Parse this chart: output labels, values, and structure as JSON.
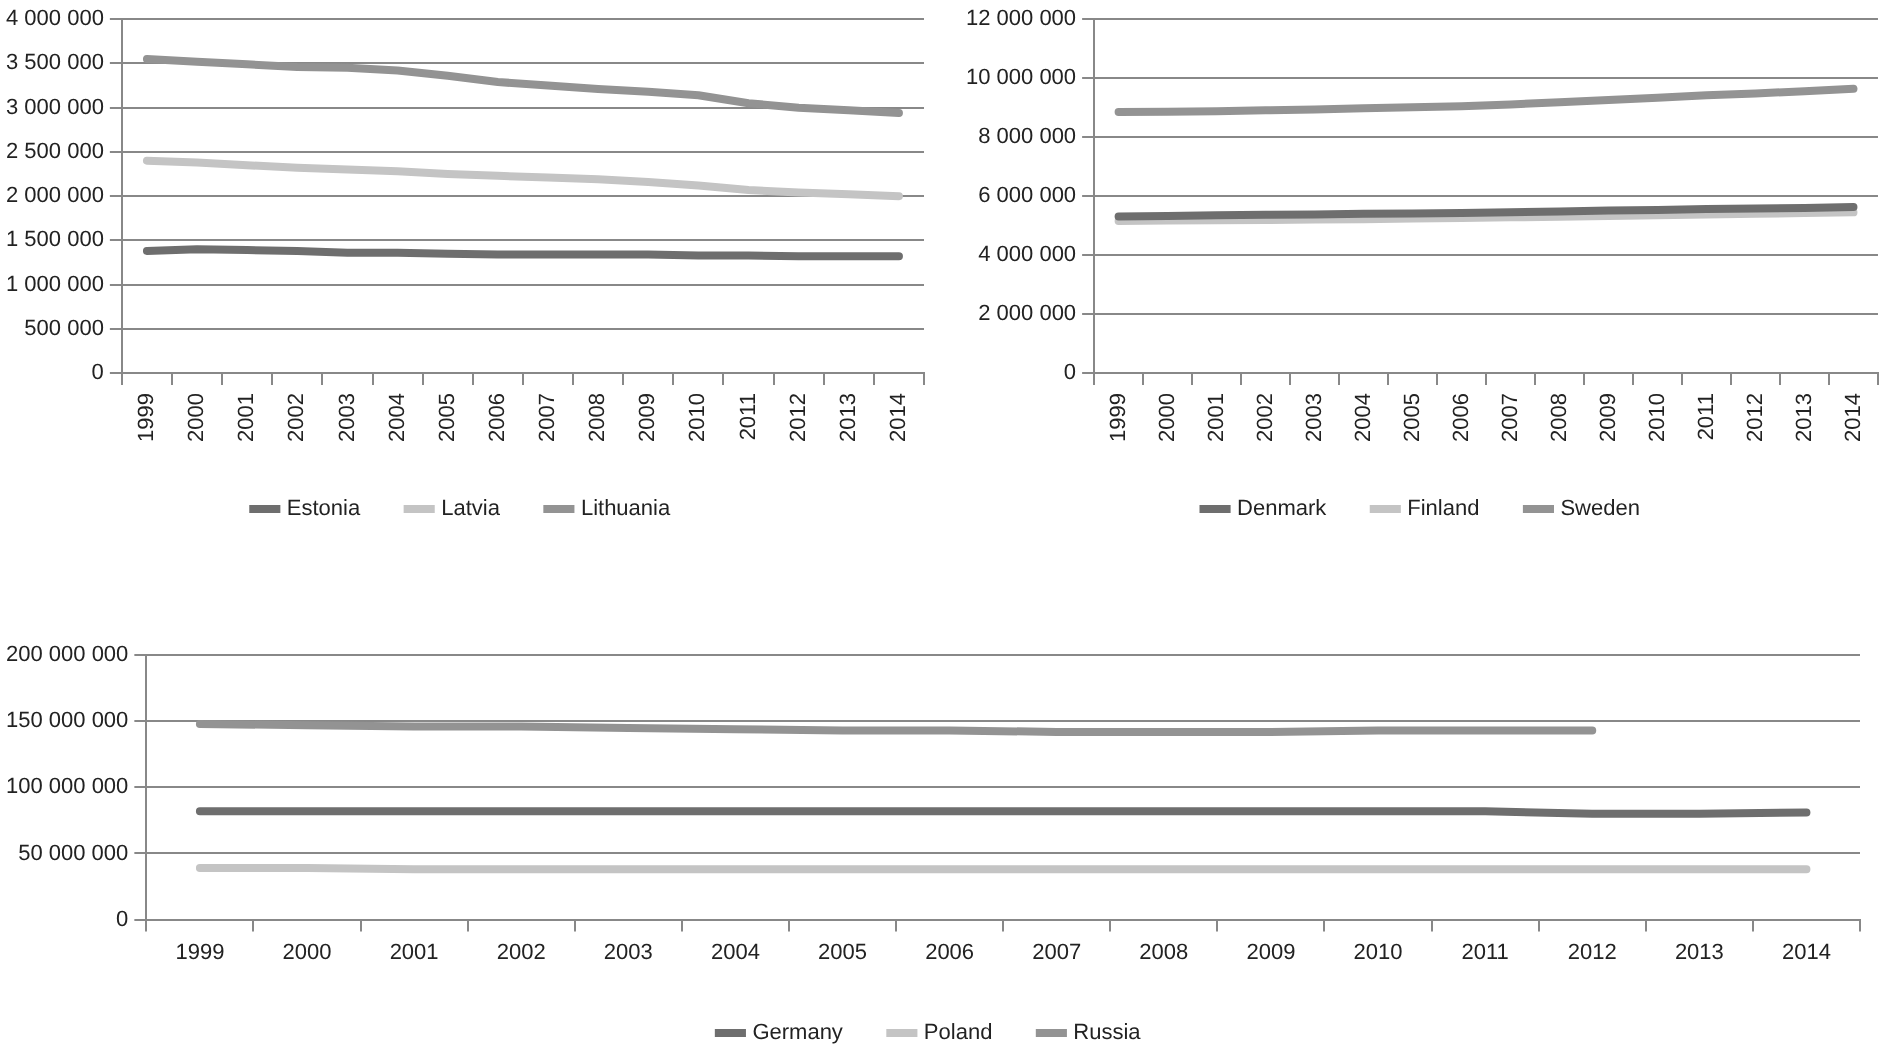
{
  "chart_data": [
    {
      "type": "line",
      "categories": [
        "1999",
        "2000",
        "2001",
        "2002",
        "2003",
        "2004",
        "2005",
        "2006",
        "2007",
        "2008",
        "2009",
        "2010",
        "2011",
        "2012",
        "2013",
        "2014"
      ],
      "series": [
        {
          "name": "Estonia",
          "color": "#6e6e6e",
          "values": [
            1380000,
            1400000,
            1390000,
            1380000,
            1360000,
            1360000,
            1350000,
            1340000,
            1340000,
            1340000,
            1340000,
            1330000,
            1330000,
            1320000,
            1320000,
            1320000
          ]
        },
        {
          "name": "Latvia",
          "color": "#c4c4c4",
          "values": [
            2400000,
            2380000,
            2350000,
            2320000,
            2300000,
            2280000,
            2250000,
            2230000,
            2210000,
            2190000,
            2160000,
            2120000,
            2070000,
            2040000,
            2020000,
            2000000
          ]
        },
        {
          "name": "Lithuania",
          "color": "#939393",
          "values": [
            3550000,
            3520000,
            3490000,
            3460000,
            3450000,
            3420000,
            3360000,
            3290000,
            3250000,
            3210000,
            3180000,
            3140000,
            3050000,
            3000000,
            2970000,
            2940000
          ]
        }
      ],
      "ylim": [
        0,
        4000000
      ],
      "yticks": [
        {
          "value": 0,
          "label": "0"
        },
        {
          "value": 500000,
          "label": "500 000"
        },
        {
          "value": 1000000,
          "label": "1 000 000"
        },
        {
          "value": 1500000,
          "label": "1 500 000"
        },
        {
          "value": 2000000,
          "label": "2 000 000"
        },
        {
          "value": 2500000,
          "label": "2 500 000"
        },
        {
          "value": 3000000,
          "label": "3 000 000"
        },
        {
          "value": 3500000,
          "label": "3 500 000"
        },
        {
          "value": 4000000,
          "label": "4 000 000"
        }
      ],
      "grid": "y",
      "legend": "bottom",
      "marker": "none",
      "line_style": "solid"
    },
    {
      "type": "line",
      "categories": [
        "1999",
        "2000",
        "2001",
        "2002",
        "2003",
        "2004",
        "2005",
        "2006",
        "2007",
        "2008",
        "2009",
        "2010",
        "2011",
        "2012",
        "2013",
        "2014"
      ],
      "series": [
        {
          "name": "Denmark",
          "color": "#6e6e6e",
          "values": [
            5310000,
            5330000,
            5350000,
            5370000,
            5380000,
            5400000,
            5410000,
            5430000,
            5450000,
            5480000,
            5510000,
            5530000,
            5560000,
            5580000,
            5600000,
            5630000
          ]
        },
        {
          "name": "Finland",
          "color": "#c4c4c4",
          "values": [
            5160000,
            5170000,
            5180000,
            5190000,
            5210000,
            5220000,
            5240000,
            5260000,
            5280000,
            5300000,
            5330000,
            5350000,
            5380000,
            5400000,
            5430000,
            5450000
          ]
        },
        {
          "name": "Sweden",
          "color": "#939393",
          "values": [
            8850000,
            8860000,
            8880000,
            8910000,
            8940000,
            8980000,
            9010000,
            9050000,
            9110000,
            9180000,
            9260000,
            9340000,
            9420000,
            9480000,
            9560000,
            9640000
          ]
        }
      ],
      "ylim": [
        0,
        12000000
      ],
      "yticks": [
        {
          "value": 0,
          "label": "0"
        },
        {
          "value": 2000000,
          "label": "2 000 000"
        },
        {
          "value": 4000000,
          "label": "4 000 000"
        },
        {
          "value": 6000000,
          "label": "6 000 000"
        },
        {
          "value": 8000000,
          "label": "8 000 000"
        },
        {
          "value": 10000000,
          "label": "10 000 000"
        },
        {
          "value": 12000000,
          "label": "12 000 000"
        }
      ],
      "grid": "y",
      "legend": "bottom",
      "marker": "none",
      "line_style": "solid"
    },
    {
      "type": "line",
      "categories": [
        "1999",
        "2000",
        "2001",
        "2002",
        "2003",
        "2004",
        "2005",
        "2006",
        "2007",
        "2008",
        "2009",
        "2010",
        "2011",
        "2012",
        "2013",
        "2014"
      ],
      "series": [
        {
          "name": "Germany",
          "color": "#6e6e6e",
          "values": [
            82000000,
            82000000,
            82000000,
            82000000,
            82000000,
            82000000,
            82000000,
            82000000,
            82000000,
            82000000,
            82000000,
            82000000,
            82000000,
            80000000,
            80000000,
            81000000
          ]
        },
        {
          "name": "Poland",
          "color": "#c4c4c4",
          "values": [
            39000000,
            39000000,
            38000000,
            38000000,
            38000000,
            38000000,
            38000000,
            38000000,
            38000000,
            38000000,
            38000000,
            38000000,
            38000000,
            38000000,
            38000000,
            38000000
          ]
        },
        {
          "name": "Russia",
          "color": "#939393",
          "values": [
            148000000,
            147000000,
            146000000,
            146000000,
            145000000,
            144000000,
            143000000,
            143000000,
            142000000,
            142000000,
            142000000,
            143000000,
            143000000,
            143000000,
            null,
            null
          ]
        }
      ],
      "ylim": [
        0,
        200000000
      ],
      "yticks": [
        {
          "value": 0,
          "label": "0"
        },
        {
          "value": 50000000,
          "label": "50 000 000"
        },
        {
          "value": 100000000,
          "label": "100 000 000"
        },
        {
          "value": 150000000,
          "label": "150 000 000"
        },
        {
          "value": 200000000,
          "label": "200 000 000"
        }
      ],
      "grid": "y",
      "legend": "bottom",
      "marker": "none",
      "line_style": "solid"
    }
  ]
}
